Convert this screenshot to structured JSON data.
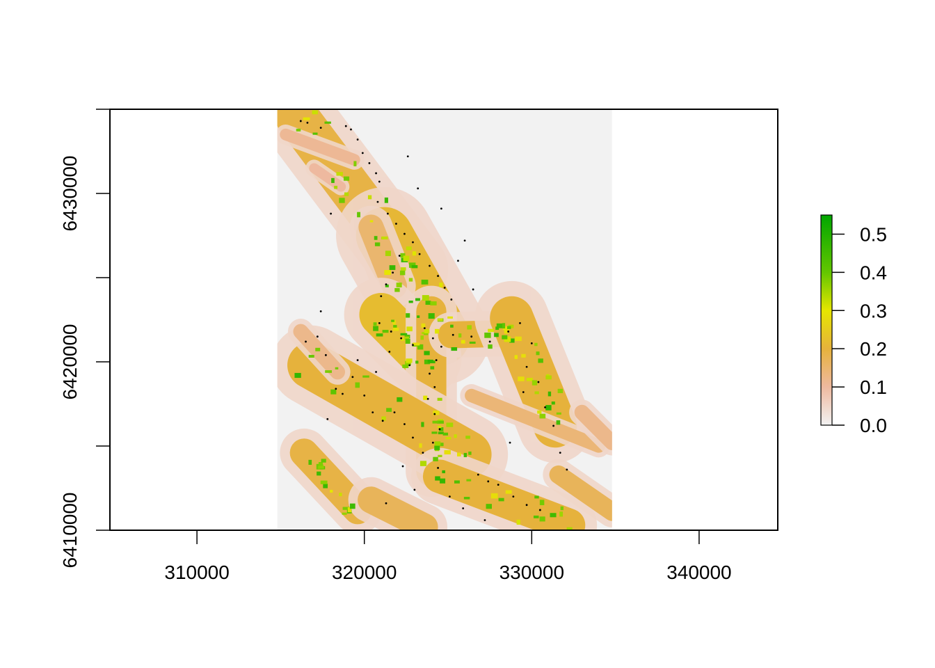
{
  "chart_data": {
    "type": "heatmap",
    "title": "",
    "xlabel": "",
    "ylabel": "",
    "xlim": [
      304800,
      344700
    ],
    "ylim": [
      6410000,
      6435000
    ],
    "x_ticks": [
      310000,
      320000,
      330000,
      340000
    ],
    "x_tick_labels": [
      "310000",
      "320000",
      "330000",
      "340000"
    ],
    "y_ticks": [
      6410000,
      6415000,
      6420000,
      6425000,
      6430000,
      6435000
    ],
    "y_tick_labels": [
      "6410000",
      "",
      "6420000",
      "",
      "6430000",
      ""
    ],
    "raster_extent": {
      "xmin": 314800,
      "xmax": 334800,
      "ymin": 6410000,
      "ymax": 6435000
    },
    "legend": {
      "position": "right",
      "range": [
        0,
        0.55
      ],
      "ticks": [
        0.0,
        0.1,
        0.2,
        0.3,
        0.4,
        0.5
      ],
      "tick_labels": [
        "0.0",
        "0.1",
        "0.2",
        "0.3",
        "0.4",
        "0.5"
      ],
      "colors": [
        {
          "value": 0.0,
          "color": "#f2f2f2"
        },
        {
          "value": 0.1,
          "color": "#eeb99f"
        },
        {
          "value": 0.2,
          "color": "#e6b23c"
        },
        {
          "value": 0.3,
          "color": "#e6e600"
        },
        {
          "value": 0.4,
          "color": "#63c600"
        },
        {
          "value": 0.55,
          "color": "#00a600"
        }
      ]
    },
    "bands": [
      {
        "x1": 316000,
        "y1": 6434500,
        "x2": 322800,
        "y2": 6425500,
        "w": 2600,
        "v": 0.19
      },
      {
        "x1": 321200,
        "y1": 6427500,
        "x2": 324600,
        "y2": 6421500,
        "w": 3400,
        "v": 0.21
      },
      {
        "x1": 320400,
        "y1": 6428000,
        "x2": 321800,
        "y2": 6424500,
        "w": 1500,
        "v": 0.15
      },
      {
        "x1": 321000,
        "y1": 6422800,
        "x2": 323600,
        "y2": 6420200,
        "w": 2600,
        "v": 0.22
      },
      {
        "x1": 324000,
        "y1": 6423000,
        "x2": 324000,
        "y2": 6413500,
        "w": 1800,
        "v": 0.2
      },
      {
        "x1": 325200,
        "y1": 6421600,
        "x2": 329000,
        "y2": 6421700,
        "w": 1600,
        "v": 0.2
      },
      {
        "x1": 328800,
        "y1": 6422600,
        "x2": 331400,
        "y2": 6416200,
        "w": 2600,
        "v": 0.2
      },
      {
        "x1": 326400,
        "y1": 6418000,
        "x2": 334000,
        "y2": 6415000,
        "w": 800,
        "v": 0.14
      },
      {
        "x1": 316800,
        "y1": 6419800,
        "x2": 326200,
        "y2": 6414500,
        "w": 2800,
        "v": 0.2
      },
      {
        "x1": 324500,
        "y1": 6413200,
        "x2": 332200,
        "y2": 6410300,
        "w": 2000,
        "v": 0.2
      },
      {
        "x1": 316400,
        "y1": 6414600,
        "x2": 319600,
        "y2": 6411200,
        "w": 1700,
        "v": 0.19
      },
      {
        "x1": 320400,
        "y1": 6411800,
        "x2": 323600,
        "y2": 6410200,
        "w": 1600,
        "v": 0.17
      },
      {
        "x1": 316200,
        "y1": 6421800,
        "x2": 318400,
        "y2": 6419400,
        "w": 900,
        "v": 0.12
      },
      {
        "x1": 317000,
        "y1": 6431500,
        "x2": 318600,
        "y2": 6430400,
        "w": 600,
        "v": 0.1
      },
      {
        "x1": 315300,
        "y1": 6433500,
        "x2": 319400,
        "y2": 6432000,
        "w": 700,
        "v": 0.11
      },
      {
        "x1": 331600,
        "y1": 6413300,
        "x2": 334800,
        "y2": 6411100,
        "w": 1100,
        "v": 0.17
      },
      {
        "x1": 333000,
        "y1": 6417000,
        "x2": 334800,
        "y2": 6415200,
        "w": 900,
        "v": 0.12
      }
    ],
    "points": [
      {
        "x": 316200,
        "y": 6434300
      },
      {
        "x": 316600,
        "y": 6434200
      },
      {
        "x": 317400,
        "y": 6433900
      },
      {
        "x": 318900,
        "y": 6434000
      },
      {
        "x": 319200,
        "y": 6433800
      },
      {
        "x": 319600,
        "y": 6433200
      },
      {
        "x": 319900,
        "y": 6432400
      },
      {
        "x": 320300,
        "y": 6431800
      },
      {
        "x": 320700,
        "y": 6431200
      },
      {
        "x": 320900,
        "y": 6430700
      },
      {
        "x": 320800,
        "y": 6429500
      },
      {
        "x": 321400,
        "y": 6428800
      },
      {
        "x": 321900,
        "y": 6428200
      },
      {
        "x": 322400,
        "y": 6427600
      },
      {
        "x": 322900,
        "y": 6427100
      },
      {
        "x": 323300,
        "y": 6426400
      },
      {
        "x": 323900,
        "y": 6425700
      },
      {
        "x": 324400,
        "y": 6425100
      },
      {
        "x": 324800,
        "y": 6424400
      },
      {
        "x": 322100,
        "y": 6426300
      },
      {
        "x": 321700,
        "y": 6425300
      },
      {
        "x": 321300,
        "y": 6424600
      },
      {
        "x": 321000,
        "y": 6423900
      },
      {
        "x": 320900,
        "y": 6422300
      },
      {
        "x": 321600,
        "y": 6421800
      },
      {
        "x": 322200,
        "y": 6421400
      },
      {
        "x": 322900,
        "y": 6421000
      },
      {
        "x": 323600,
        "y": 6422000
      },
      {
        "x": 324100,
        "y": 6421400
      },
      {
        "x": 324600,
        "y": 6420900
      },
      {
        "x": 324300,
        "y": 6420100
      },
      {
        "x": 323900,
        "y": 6419300
      },
      {
        "x": 324200,
        "y": 6418500
      },
      {
        "x": 323800,
        "y": 6417800
      },
      {
        "x": 324200,
        "y": 6416900
      },
      {
        "x": 324500,
        "y": 6416000
      },
      {
        "x": 324100,
        "y": 6415200
      },
      {
        "x": 325300,
        "y": 6421600
      },
      {
        "x": 326400,
        "y": 6421500
      },
      {
        "x": 327500,
        "y": 6421200
      },
      {
        "x": 328600,
        "y": 6421800
      },
      {
        "x": 329300,
        "y": 6422300
      },
      {
        "x": 330000,
        "y": 6421100
      },
      {
        "x": 329700,
        "y": 6419700
      },
      {
        "x": 330400,
        "y": 6418800
      },
      {
        "x": 329500,
        "y": 6418200
      },
      {
        "x": 330800,
        "y": 6417300
      },
      {
        "x": 331300,
        "y": 6416200
      },
      {
        "x": 331700,
        "y": 6414600
      },
      {
        "x": 332100,
        "y": 6413600
      },
      {
        "x": 328700,
        "y": 6415200
      },
      {
        "x": 318300,
        "y": 6418400
      },
      {
        "x": 318700,
        "y": 6418100
      },
      {
        "x": 319300,
        "y": 6419100
      },
      {
        "x": 320000,
        "y": 6418000
      },
      {
        "x": 320500,
        "y": 6417000
      },
      {
        "x": 321100,
        "y": 6416500
      },
      {
        "x": 321800,
        "y": 6417000
      },
      {
        "x": 322400,
        "y": 6416300
      },
      {
        "x": 322900,
        "y": 6415500
      },
      {
        "x": 323500,
        "y": 6414600
      },
      {
        "x": 324400,
        "y": 6413700
      },
      {
        "x": 317200,
        "y": 6421500
      },
      {
        "x": 317700,
        "y": 6420400
      },
      {
        "x": 316500,
        "y": 6421200
      },
      {
        "x": 317400,
        "y": 6423000
      },
      {
        "x": 326800,
        "y": 6413300
      },
      {
        "x": 327400,
        "y": 6412900
      },
      {
        "x": 328000,
        "y": 6412700
      },
      {
        "x": 328900,
        "y": 6412000
      },
      {
        "x": 329700,
        "y": 6411500
      },
      {
        "x": 330500,
        "y": 6411200
      },
      {
        "x": 325100,
        "y": 6412000
      },
      {
        "x": 325900,
        "y": 6411300
      },
      {
        "x": 327200,
        "y": 6410600
      },
      {
        "x": 321300,
        "y": 6411600
      },
      {
        "x": 318000,
        "y": 6428800
      },
      {
        "x": 322600,
        "y": 6432200
      },
      {
        "x": 323200,
        "y": 6430300
      },
      {
        "x": 324600,
        "y": 6429100
      },
      {
        "x": 326000,
        "y": 6427200
      },
      {
        "x": 325600,
        "y": 6426000
      },
      {
        "x": 326500,
        "y": 6424300
      },
      {
        "x": 325200,
        "y": 6423700
      },
      {
        "x": 322700,
        "y": 6419800
      },
      {
        "x": 321500,
        "y": 6420600
      },
      {
        "x": 320700,
        "y": 6419400
      },
      {
        "x": 319600,
        "y": 6420100
      },
      {
        "x": 317800,
        "y": 6416600
      },
      {
        "x": 322300,
        "y": 6413800
      },
      {
        "x": 323000,
        "y": 6412400
      }
    ]
  }
}
